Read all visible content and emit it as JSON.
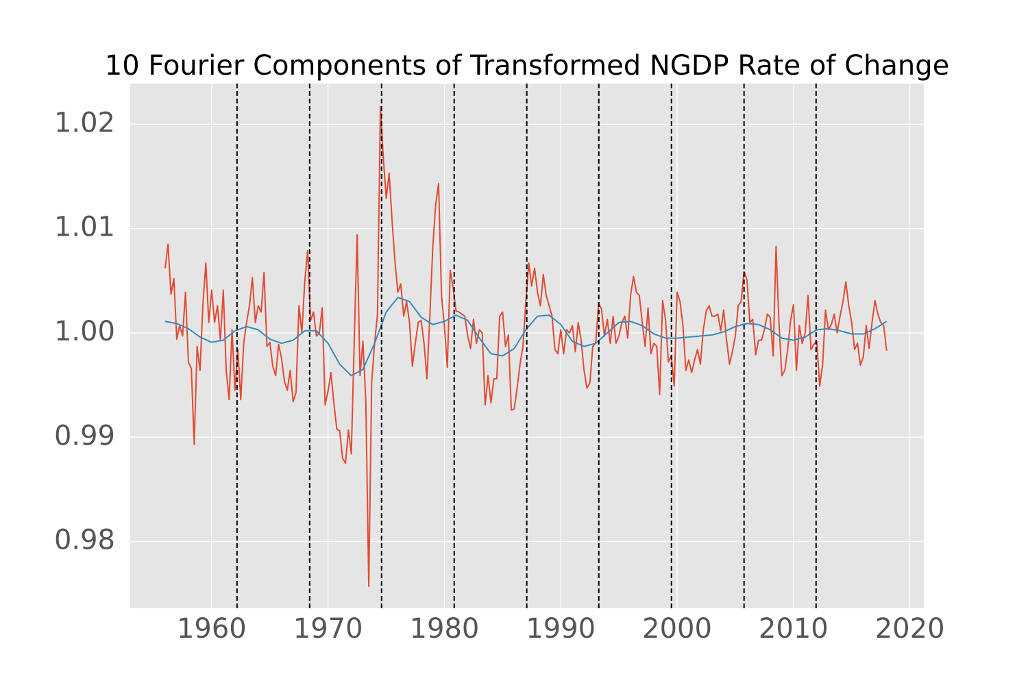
{
  "chart_data": {
    "type": "line",
    "title": "10 Fourier Components of Transformed NGDP Rate of Change",
    "xlim": [
      1953.0,
      2021.2
    ],
    "ylim": [
      0.9736,
      1.0239
    ],
    "xticks": [
      1960,
      1970,
      1980,
      1990,
      2000,
      2010,
      2020
    ],
    "yticks": [
      0.98,
      0.99,
      {
        "value": 1,
        "label": "1.00"
      },
      1.01,
      1.02
    ],
    "grid": true,
    "vlines": [
      1962.18,
      1968.42,
      1974.6,
      1980.84,
      1987.08,
      1993.27,
      1999.51,
      2005.75,
      2011.94
    ],
    "vline_color": "#000000",
    "series": [
      {
        "color": "#e24a33",
        "x": [
          1956,
          1956.25,
          1956.5,
          1956.75,
          1957,
          1957.25,
          1957.5,
          1957.75,
          1958,
          1958.25,
          1958.5,
          1958.75,
          1959,
          1959.25,
          1959.5,
          1959.75,
          1960,
          1960.25,
          1960.5,
          1960.75,
          1961,
          1961.25,
          1961.5,
          1961.75,
          1962,
          1962.25,
          1962.5,
          1962.75,
          1963,
          1963.25,
          1963.5,
          1963.75,
          1964,
          1964.25,
          1964.5,
          1964.75,
          1965,
          1965.25,
          1965.5,
          1965.75,
          1966,
          1966.25,
          1966.5,
          1966.75,
          1967,
          1967.25,
          1967.5,
          1967.75,
          1968,
          1968.25,
          1968.5,
          1968.75,
          1969,
          1969.25,
          1969.5,
          1969.75,
          1970,
          1970.25,
          1970.5,
          1970.75,
          1971,
          1971.25,
          1971.5,
          1971.75,
          1972,
          1972.25,
          1972.5,
          1972.75,
          1973,
          1973.25,
          1973.5,
          1973.75,
          1974,
          1974.25,
          1974.5,
          1974.75,
          1975,
          1975.25,
          1975.5,
          1975.75,
          1976,
          1976.25,
          1976.5,
          1976.75,
          1977,
          1977.25,
          1977.5,
          1977.75,
          1978,
          1978.25,
          1978.5,
          1978.75,
          1979,
          1979.25,
          1979.5,
          1979.75,
          1980,
          1980.25,
          1980.5,
          1980.75,
          1981,
          1981.25,
          1981.5,
          1981.75,
          1982,
          1982.25,
          1982.5,
          1982.75,
          1983,
          1983.25,
          1983.5,
          1983.75,
          1984,
          1984.25,
          1984.5,
          1984.75,
          1985,
          1985.25,
          1985.5,
          1985.75,
          1986,
          1986.25,
          1986.5,
          1986.75,
          1987,
          1987.25,
          1987.5,
          1987.75,
          1988,
          1988.25,
          1988.5,
          1988.75,
          1989,
          1989.25,
          1989.5,
          1989.75,
          1990,
          1990.25,
          1990.5,
          1990.75,
          1991,
          1991.25,
          1991.5,
          1991.75,
          1992,
          1992.25,
          1992.5,
          1992.75,
          1993,
          1993.25,
          1993.5,
          1993.75,
          1994,
          1994.25,
          1994.5,
          1994.75,
          1995,
          1995.25,
          1995.5,
          1995.75,
          1996,
          1996.25,
          1996.5,
          1996.75,
          1997,
          1997.25,
          1997.5,
          1997.75,
          1998,
          1998.25,
          1998.5,
          1998.75,
          1999,
          1999.25,
          1999.5,
          1999.75,
          2000,
          2000.25,
          2000.5,
          2000.75,
          2001,
          2001.25,
          2001.5,
          2001.75,
          2002,
          2002.25,
          2002.5,
          2002.75,
          2003,
          2003.25,
          2003.5,
          2003.75,
          2004,
          2004.25,
          2004.5,
          2004.75,
          2005,
          2005.25,
          2005.5,
          2005.75,
          2006,
          2006.25,
          2006.5,
          2006.75,
          2007,
          2007.25,
          2007.5,
          2007.75,
          2008,
          2008.25,
          2008.5,
          2008.75,
          2009,
          2009.25,
          2009.5,
          2009.75,
          2010,
          2010.25,
          2010.5,
          2010.75,
          2011,
          2011.25,
          2011.5,
          2011.75,
          2012,
          2012.25,
          2012.5,
          2012.75,
          2013,
          2013.25,
          2013.5,
          2013.75,
          2014,
          2014.25,
          2014.5,
          2014.75,
          2015,
          2015.25,
          2015.5,
          2015.75,
          2016,
          2016.25,
          2016.5,
          2016.75,
          2017,
          2017.25,
          2017.5,
          2017.75,
          2018
        ],
        "values": [
          1.0062,
          1.0085,
          1.0037,
          1.0052,
          0.9994,
          1.0007,
          0.9997,
          1.0039,
          0.9972,
          0.9966,
          0.9893,
          0.9987,
          0.9964,
          1.0028,
          1.0067,
          1.001,
          1.0041,
          1.001,
          1.0026,
          0.9993,
          1.0041,
          0.9964,
          0.9936,
          1.0003,
          0.9945,
          0.9984,
          0.9936,
          0.999,
          1.001,
          1.0026,
          1.0053,
          1.001,
          1.0026,
          1.002,
          1.0058,
          0.9987,
          0.9991,
          0.9968,
          0.9959,
          0.9989,
          0.9976,
          0.9954,
          0.9945,
          0.9964,
          0.9934,
          0.9943,
          1.0026,
          1.0,
          1.0049,
          1.0079,
          1.0012,
          1.002,
          0.9997,
          1.0,
          1.0024,
          0.9931,
          0.9944,
          0.9962,
          0.9933,
          0.9908,
          0.9906,
          0.988,
          0.9875,
          0.9907,
          0.9884,
          0.9991,
          1.0094,
          0.9959,
          0.9992,
          0.9934,
          0.9757,
          0.9952,
          0.999,
          1.0018,
          1.0217,
          1.0168,
          1.0129,
          1.0153,
          1.0108,
          1.0069,
          1.0039,
          1.0047,
          1.0016,
          1.003,
          1.001,
          0.9968,
          0.999,
          1.001,
          1.0012,
          0.999,
          0.9956,
          1.0016,
          1.0082,
          1.0123,
          1.0143,
          1.0036,
          1.0007,
          0.9967,
          1.006,
          1.0043,
          1.0021,
          1.002,
          1.0018,
          1.0016,
          0.9997,
          0.9985,
          1.0013,
          0.999,
          1.0003,
          1.0,
          0.9931,
          0.9959,
          0.9933,
          0.9956,
          0.9956,
          1.0016,
          1.002,
          0.9987,
          0.9998,
          0.9926,
          0.9927,
          0.9947,
          0.997,
          0.9987,
          1.003,
          1.0067,
          1.0045,
          1.0062,
          1.0039,
          1.0026,
          1.0056,
          1.0036,
          1.0026,
          1.0016,
          0.9984,
          0.998,
          1.0003,
          0.998,
          1.0003,
          1.0,
          1.0007,
          0.9982,
          1.001,
          0.9993,
          0.9964,
          0.9947,
          0.9952,
          0.9987,
          0.999,
          1.0028,
          1.0023,
          0.9997,
          1.0013,
          0.999,
          1.0016,
          0.999,
          0.9997,
          1.001,
          1.0016,
          0.9995,
          1.0036,
          1.0054,
          1.0039,
          1.0036,
          1.001,
          0.9987,
          1.0024,
          0.998,
          0.999,
          0.9987,
          0.9941,
          1.0031,
          1.0013,
          0.9972,
          0.9978,
          0.9949,
          1.0039,
          1.003,
          1.0007,
          0.9964,
          0.9974,
          0.9962,
          0.9974,
          0.9984,
          0.997,
          1.0003,
          1.0021,
          1.0026,
          1.0016,
          1.0016,
          1.0018,
          1.0002,
          1.0022,
          0.9993,
          0.997,
          0.9982,
          0.9997,
          1.0026,
          1.003,
          1.0059,
          1.0051,
          1.001,
          1.0013,
          0.9979,
          0.9993,
          0.9993,
          1.0003,
          1.0018,
          1.0015,
          0.9978,
          1.0083,
          1.001,
          0.9959,
          0.9964,
          0.9984,
          1.0012,
          1.0027,
          0.9964,
          1.0007,
          0.999,
          1.0,
          1.0036,
          0.9984,
          0.9989,
          0.9992,
          0.9949,
          0.9969,
          1.0022,
          1.0003,
          1.0008,
          1.0018,
          1.0,
          1.0016,
          1.003,
          1.0049,
          1.0026,
          1.001,
          0.9984,
          0.999,
          0.9969,
          0.9977,
          1.0007,
          0.9985,
          1.001,
          1.0031,
          1.0018,
          1.001,
          1.0007,
          0.9983
        ]
      },
      {
        "color": "#348abd",
        "x": [
          1956,
          1957,
          1958,
          1959,
          1960,
          1961,
          1962,
          1963,
          1964,
          1965,
          1966,
          1967,
          1968,
          1969,
          1970,
          1971,
          1972,
          1973,
          1974,
          1975,
          1976,
          1977,
          1978,
          1979,
          1980,
          1981,
          1982,
          1983,
          1984,
          1985,
          1986,
          1987,
          1988,
          1989,
          1990,
          1991,
          1992,
          1993,
          1994,
          1995,
          1996,
          1997,
          1998,
          1999,
          2000,
          2001,
          2002,
          2003,
          2004,
          2005,
          2006,
          2007,
          2008,
          2009,
          2010,
          2011,
          2012,
          2013,
          2014,
          2015,
          2016,
          2017,
          2018
        ],
        "values": [
          1.0011,
          1.0009,
          1.0004,
          0.9996,
          0.9991,
          0.9993,
          1.0002,
          1.0006,
          1.0003,
          0.9994,
          0.999,
          0.9993,
          1.0002,
          1.0002,
          0.999,
          0.997,
          0.9959,
          0.9965,
          0.999,
          1.002,
          1.0034,
          1.003,
          1.0015,
          1.0008,
          1.0011,
          1.0017,
          1.0012,
          0.9995,
          0.998,
          0.9978,
          0.9985,
          1.0003,
          1.0016,
          1.0017,
          1.0008,
          0.9992,
          0.9987,
          0.999,
          1.0,
          1.001,
          1.0011,
          1.0007,
          0.9999,
          0.9995,
          0.9995,
          0.9996,
          0.9997,
          0.9998,
          1.0001,
          1.0006,
          1.0009,
          1.0008,
          1.0003,
          0.9995,
          0.9993,
          0.9996,
          1.0003,
          1.0004,
          1.0002,
          0.9999,
          0.9999,
          1.0004,
          1.0011
        ]
      }
    ]
  }
}
